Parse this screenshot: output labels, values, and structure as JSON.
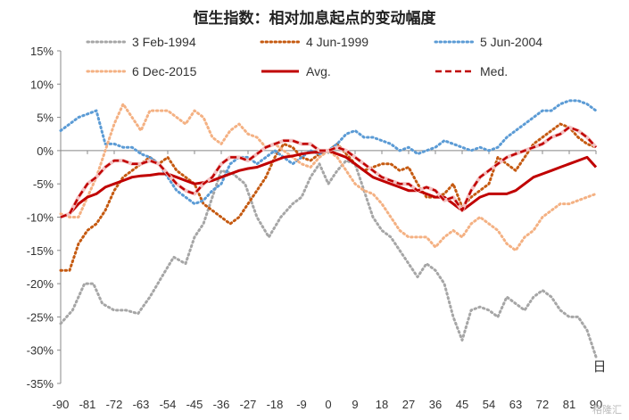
{
  "chart_data": {
    "type": "line",
    "title": "恒生指数：相对加息起点的变动幅度",
    "xlabel": "日",
    "ylabel": "",
    "xlim": [
      -90,
      90
    ],
    "ylim": [
      -35,
      15
    ],
    "x_ticks": [
      -90,
      -81,
      -72,
      -63,
      -54,
      -45,
      -36,
      -27,
      -18,
      -9,
      0,
      9,
      18,
      27,
      36,
      45,
      54,
      63,
      72,
      81,
      90
    ],
    "x_tick_labels": [
      "-90",
      "-81",
      "-72",
      "-63",
      "-54",
      "-45",
      "-36",
      "-27",
      "-18",
      "-9",
      "0",
      "9",
      "18",
      "27",
      "36",
      "45",
      "54",
      "63",
      "72",
      "81",
      "90"
    ],
    "y_ticks": [
      -35,
      -30,
      -25,
      -20,
      -15,
      -10,
      -5,
      0,
      5,
      10,
      15
    ],
    "y_tick_labels": [
      "-35%",
      "-30%",
      "-25%",
      "-20%",
      "-15%",
      "-10%",
      "-5%",
      "0%",
      "5%",
      "10%",
      "15%"
    ],
    "legend_position": "top",
    "series": [
      {
        "name": "3 Feb-1994",
        "color": "#a6a6a6",
        "style": "dotted",
        "x": [
          -90,
          -86,
          -82,
          -79,
          -76,
          -72,
          -68,
          -64,
          -60,
          -56,
          -52,
          -48,
          -45,
          -42,
          -39,
          -36,
          -32,
          -28,
          -24,
          -20,
          -16,
          -12,
          -9,
          -6,
          -3,
          0,
          3,
          6,
          9,
          12,
          15,
          18,
          21,
          24,
          27,
          30,
          33,
          36,
          39,
          42,
          45,
          48,
          51,
          54,
          57,
          60,
          63,
          66,
          69,
          72,
          75,
          78,
          81,
          84,
          87,
          90
        ],
        "values": [
          -26,
          -24,
          -20,
          -20,
          -23,
          -24,
          -24,
          -24.5,
          -22,
          -19,
          -16,
          -17,
          -13,
          -11,
          -7,
          -3,
          -3.5,
          -5,
          -10,
          -13,
          -10,
          -8,
          -7,
          -4,
          -2,
          -5,
          -3,
          -1.5,
          -2,
          -6,
          -10,
          -12,
          -13,
          -15,
          -17,
          -19,
          -17,
          -18,
          -20,
          -25,
          -28.5,
          -24,
          -23.5,
          -24,
          -25,
          -22,
          -23,
          -24,
          -22,
          -21,
          -22,
          -24,
          -25,
          -25,
          -27,
          -31
        ]
      },
      {
        "name": "4 Jun-1999",
        "color": "#c55a11",
        "style": "dotted",
        "x": [
          -90,
          -87,
          -84,
          -81,
          -78,
          -75,
          -72,
          -69,
          -66,
          -63,
          -60,
          -57,
          -54,
          -51,
          -48,
          -45,
          -42,
          -39,
          -36,
          -33,
          -30,
          -27,
          -24,
          -21,
          -18,
          -15,
          -12,
          -9,
          -6,
          -3,
          0,
          3,
          6,
          9,
          12,
          15,
          18,
          21,
          24,
          27,
          30,
          33,
          36,
          39,
          42,
          45,
          48,
          51,
          54,
          57,
          60,
          63,
          66,
          69,
          72,
          75,
          78,
          81,
          84,
          87,
          90
        ],
        "values": [
          -18,
          -18,
          -14,
          -12,
          -11,
          -9,
          -6,
          -4,
          -3,
          -2,
          -1,
          -2,
          -1,
          -3,
          -4,
          -5,
          -8,
          -9,
          -10,
          -11,
          -10,
          -8,
          -6,
          -4,
          -1,
          1,
          0.5,
          -1,
          -1.5,
          -0.5,
          0,
          1,
          -0.5,
          -2,
          -3,
          -2.5,
          -2,
          -2,
          -3,
          -2.5,
          -5,
          -7,
          -7,
          -6.5,
          -5,
          -8.5,
          -7,
          -6,
          -5,
          -1,
          -2,
          -3,
          -1,
          1,
          2,
          3,
          4,
          3.5,
          2,
          1,
          0.5
        ]
      },
      {
        "name": "5 Jun-2004",
        "color": "#5b9bd5",
        "style": "dotted",
        "x": [
          -90,
          -87,
          -84,
          -81,
          -78,
          -75,
          -72,
          -69,
          -66,
          -63,
          -60,
          -57,
          -54,
          -51,
          -48,
          -45,
          -42,
          -39,
          -36,
          -33,
          -30,
          -27,
          -24,
          -21,
          -18,
          -15,
          -12,
          -9,
          -6,
          -3,
          0,
          3,
          6,
          9,
          12,
          15,
          18,
          21,
          24,
          27,
          30,
          33,
          36,
          39,
          42,
          45,
          48,
          51,
          54,
          57,
          60,
          63,
          66,
          69,
          72,
          75,
          78,
          81,
          84,
          87,
          90
        ],
        "values": [
          3,
          4,
          5,
          5.5,
          6,
          1,
          1,
          0.5,
          0.5,
          -0.5,
          -1,
          -2,
          -4,
          -6,
          -7,
          -8,
          -7.5,
          -6,
          -5,
          -2,
          -1,
          -1,
          -2,
          -1,
          0,
          -1,
          -2,
          -1,
          0,
          -0.5,
          0,
          1,
          2.5,
          3,
          2,
          2,
          1.5,
          1,
          0,
          0.5,
          -0.5,
          0,
          0.5,
          1.5,
          1,
          0.5,
          0,
          0.5,
          0,
          0.5,
          2,
          3,
          4,
          5,
          6,
          6,
          7,
          7.5,
          7.5,
          7,
          6
        ]
      },
      {
        "name": "6 Dec-2015",
        "color": "#f4b183",
        "style": "dotted",
        "x": [
          -90,
          -87,
          -84,
          -81,
          -78,
          -75,
          -72,
          -69,
          -66,
          -63,
          -60,
          -57,
          -54,
          -51,
          -48,
          -45,
          -42,
          -39,
          -36,
          -33,
          -30,
          -27,
          -24,
          -21,
          -18,
          -15,
          -12,
          -9,
          -6,
          -3,
          0,
          3,
          6,
          9,
          12,
          15,
          18,
          21,
          24,
          27,
          30,
          33,
          36,
          39,
          42,
          45,
          48,
          51,
          54,
          57,
          60,
          63,
          66,
          69,
          72,
          75,
          78,
          81,
          84,
          87,
          90
        ],
        "values": [
          -9.5,
          -10,
          -10,
          -7,
          -4,
          0,
          4,
          7,
          5,
          3,
          6,
          6,
          6,
          5,
          4,
          6,
          5,
          2,
          1,
          3,
          4,
          2.5,
          2,
          0.5,
          1,
          0,
          -1,
          -2,
          -2.5,
          -1,
          0,
          -1,
          -3,
          -5,
          -6,
          -6.5,
          -8,
          -10,
          -12,
          -13,
          -13,
          -13,
          -14.5,
          -13,
          -12,
          -13,
          -11,
          -10,
          -11,
          -12,
          -14,
          -15,
          -13,
          -12,
          -10,
          -9,
          -8,
          -8,
          -7.5,
          -7,
          -6.5
        ]
      },
      {
        "name": "Avg.",
        "color": "#c00000",
        "style": "solid",
        "x": [
          -90,
          -87,
          -84,
          -81,
          -78,
          -75,
          -72,
          -69,
          -66,
          -63,
          -60,
          -57,
          -54,
          -51,
          -48,
          -45,
          -42,
          -39,
          -36,
          -33,
          -30,
          -27,
          -24,
          -21,
          -18,
          -15,
          -12,
          -9,
          -6,
          -3,
          0,
          3,
          6,
          9,
          12,
          15,
          18,
          21,
          24,
          27,
          30,
          33,
          36,
          39,
          42,
          45,
          48,
          51,
          54,
          57,
          60,
          63,
          66,
          69,
          72,
          75,
          78,
          81,
          84,
          87,
          90
        ],
        "values": [
          -10,
          -9.5,
          -8,
          -7,
          -6.5,
          -5.5,
          -5,
          -4.5,
          -4,
          -3.8,
          -3.7,
          -3.5,
          -3.5,
          -4,
          -4.5,
          -5,
          -4.8,
          -4.5,
          -4,
          -3.5,
          -3,
          -2.7,
          -2.5,
          -2,
          -1.5,
          -1,
          -0.8,
          -0.5,
          -0.3,
          -0.2,
          0,
          -0.5,
          -1,
          -2,
          -3,
          -4,
          -4.5,
          -5,
          -5.5,
          -6,
          -6,
          -6.5,
          -7,
          -7,
          -8,
          -9,
          -8,
          -7,
          -6.5,
          -6.5,
          -6.5,
          -6,
          -5,
          -4,
          -3.5,
          -3,
          -2.5,
          -2,
          -1.5,
          -1,
          -2.5
        ]
      },
      {
        "name": "Med.",
        "color": "#c00000",
        "style": "dashed",
        "x": [
          -90,
          -87,
          -84,
          -81,
          -78,
          -75,
          -72,
          -69,
          -66,
          -63,
          -60,
          -57,
          -54,
          -51,
          -48,
          -45,
          -42,
          -39,
          -36,
          -33,
          -30,
          -27,
          -24,
          -21,
          -18,
          -15,
          -12,
          -9,
          -6,
          -3,
          0,
          3,
          6,
          9,
          12,
          15,
          18,
          21,
          24,
          27,
          30,
          33,
          36,
          39,
          42,
          45,
          48,
          51,
          54,
          57,
          60,
          63,
          66,
          69,
          72,
          75,
          78,
          81,
          84,
          87,
          90
        ],
        "values": [
          -10,
          -9.5,
          -7,
          -5,
          -4,
          -2.5,
          -1.5,
          -1.5,
          -2,
          -2,
          -1.5,
          -2,
          -3.5,
          -5,
          -6,
          -6.5,
          -5,
          -4,
          -2,
          -1,
          -1,
          -1.5,
          -0.5,
          0.5,
          1,
          1.5,
          1.5,
          1,
          1,
          0,
          0,
          0.5,
          0,
          -1,
          -2,
          -3,
          -4,
          -4.5,
          -5,
          -5,
          -6,
          -5.5,
          -6,
          -7.5,
          -7,
          -9,
          -6,
          -4,
          -3,
          -2,
          -1,
          -0.5,
          0,
          0.5,
          1,
          2,
          2.5,
          3.5,
          3,
          2,
          0.5
        ]
      }
    ]
  },
  "watermark": "格隆汇"
}
